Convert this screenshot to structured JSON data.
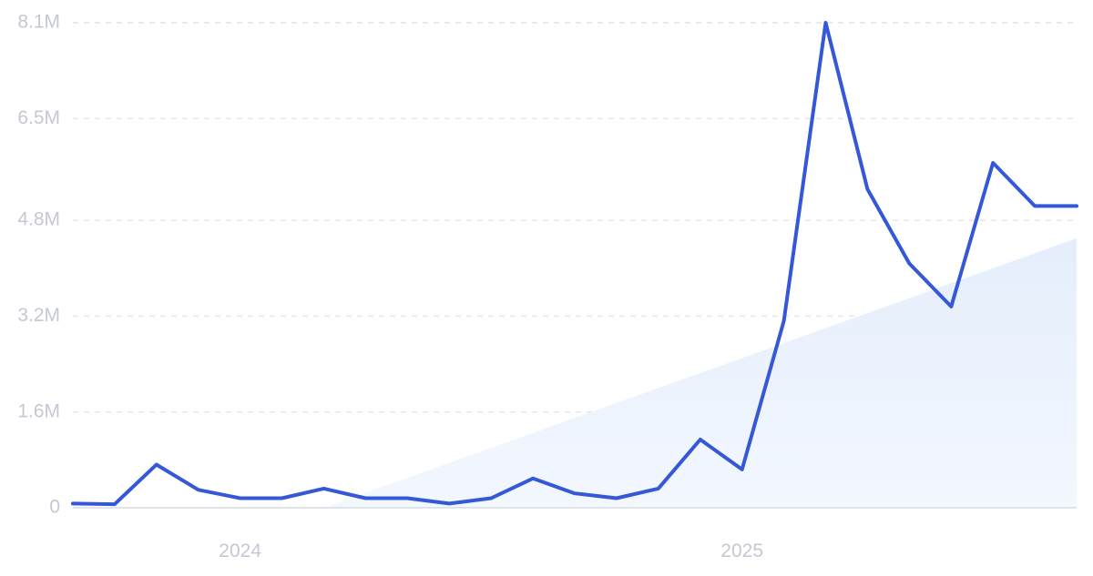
{
  "chart_data": {
    "type": "line",
    "title": "",
    "xlabel": "",
    "ylabel": "",
    "ylim": [
      0,
      8100000
    ],
    "y_ticks": [
      {
        "value": 0,
        "label": "0"
      },
      {
        "value": 1600000,
        "label": "1.6M"
      },
      {
        "value": 3200000,
        "label": "3.2M"
      },
      {
        "value": 4800000,
        "label": "4.8M"
      },
      {
        "value": 6500000,
        "label": "6.5M"
      },
      {
        "value": 8100000,
        "label": "8.1M"
      }
    ],
    "x_ticks": [
      {
        "value": "2024-01",
        "label": "2024"
      },
      {
        "value": "2025-01",
        "label": "2025"
      }
    ],
    "x": [
      "2023-09",
      "2023-10",
      "2023-11",
      "2023-12",
      "2024-01",
      "2024-02",
      "2024-03",
      "2024-04",
      "2024-05",
      "2024-06",
      "2024-07",
      "2024-08",
      "2024-09",
      "2024-10",
      "2024-11",
      "2024-12",
      "2025-01",
      "2025-02",
      "2025-03",
      "2025-04",
      "2025-05",
      "2025-06",
      "2025-07",
      "2025-08",
      "2025-09"
    ],
    "series": [
      {
        "values": [
          70000,
          60000,
          720000,
          300000,
          160000,
          160000,
          320000,
          160000,
          160000,
          70000,
          160000,
          490000,
          240000,
          160000,
          320000,
          1140000,
          640000,
          3120000,
          8100000,
          5320000,
          4080000,
          3360000,
          5760000,
          5040000,
          5040000
        ]
      }
    ],
    "trend": {
      "start": {
        "x": "2024-03",
        "y": 0
      },
      "end": {
        "x": "2025-09",
        "y": 4500000
      }
    },
    "grid": true,
    "legend": "none",
    "colors": {
      "line": "#3558d6",
      "trend_fill": "#e6f0fc",
      "grid": "#e2e4ea",
      "axis": "#d7dbe4",
      "tick_text": "#c5c8d3"
    }
  }
}
